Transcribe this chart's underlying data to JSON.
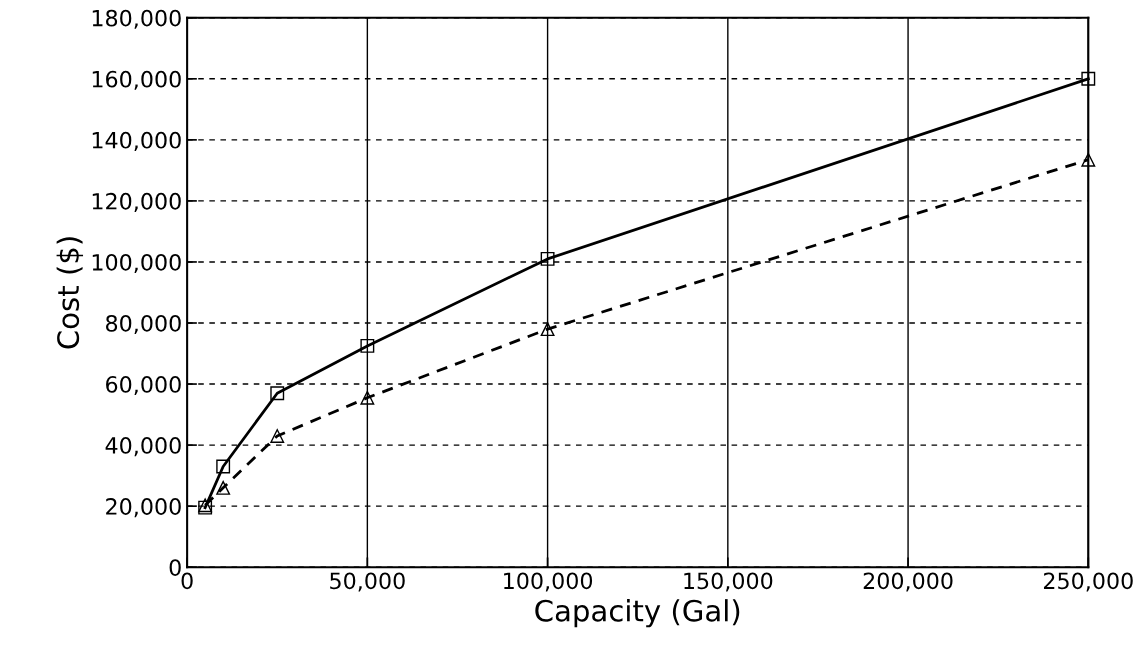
{
  "chart_data": {
    "type": "line",
    "xlabel": "Capacity (Gal)",
    "ylabel": "Cost ($)",
    "xlim": [
      0,
      250000
    ],
    "ylim": [
      0,
      180000
    ],
    "xticks": [
      {
        "value": 0,
        "label": "0"
      },
      {
        "value": 50000,
        "label": "50,000"
      },
      {
        "value": 100000,
        "label": "100,000"
      },
      {
        "value": 150000,
        "label": "150,000"
      },
      {
        "value": 200000,
        "label": "200,000"
      },
      {
        "value": 250000,
        "label": "250,000"
      }
    ],
    "yticks": [
      {
        "value": 0,
        "label": "0"
      },
      {
        "value": 20000,
        "label": "20,000"
      },
      {
        "value": 40000,
        "label": "40,000"
      },
      {
        "value": 60000,
        "label": "60,000"
      },
      {
        "value": 80000,
        "label": "80,000"
      },
      {
        "value": 100000,
        "label": "100,000"
      },
      {
        "value": 120000,
        "label": "120,000"
      },
      {
        "value": 140000,
        "label": "140,000"
      },
      {
        "value": 160000,
        "label": "160,000"
      },
      {
        "value": 180000,
        "label": "180,000"
      }
    ],
    "grid": true,
    "series": [
      {
        "color": "#000000",
        "marker": "square",
        "line_style": "solid",
        "x": [
          5000,
          10000,
          25000,
          50000,
          100000,
          250000
        ],
        "values": [
          19500,
          33000,
          57000,
          72500,
          101000,
          160000
        ]
      },
      {
        "color": "#000000",
        "marker": "triangle",
        "line_style": "dashed",
        "x": [
          5000,
          10000,
          25000,
          50000,
          100000,
          250000
        ],
        "values": [
          20300,
          26000,
          43000,
          55500,
          78000,
          133500
        ]
      }
    ]
  }
}
